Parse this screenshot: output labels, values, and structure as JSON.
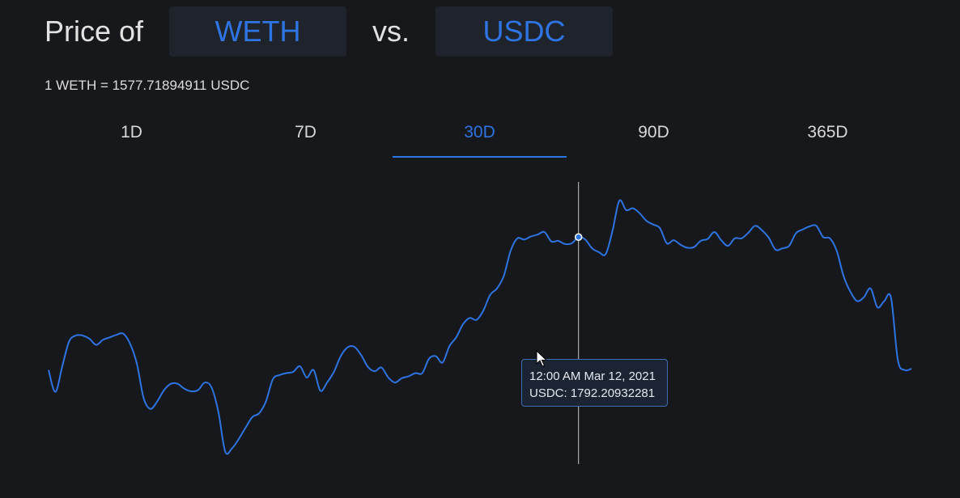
{
  "header": {
    "prefix": "Price of",
    "base_token": "WETH",
    "separator": "vs.",
    "quote_token": "USDC"
  },
  "rate_text": "1 WETH = 1577.71894911 USDC",
  "tabs": [
    {
      "label": "1D",
      "active": false
    },
    {
      "label": "7D",
      "active": false
    },
    {
      "label": "30D",
      "active": true
    },
    {
      "label": "90D",
      "active": false
    },
    {
      "label": "365D",
      "active": false
    }
  ],
  "tooltip": {
    "time": "12:00 AM Mar 12, 2021",
    "value": "USDC: 1792.20932281"
  },
  "colors": {
    "accent": "#2e74e2",
    "line": "#2e74e2",
    "background": "#17181c",
    "crosshair": "#c9c9c9"
  },
  "chart_data": {
    "type": "line",
    "title": "",
    "xlabel": "",
    "ylabel": "",
    "grid": false,
    "legend": "none",
    "ylim": [
      1430,
      1880
    ],
    "highlight_index": 78,
    "series": [
      {
        "name": "USDC",
        "values": [
          1580,
          1545,
          1585,
          1625,
          1635,
          1635,
          1630,
          1620,
          1628,
          1632,
          1636,
          1638,
          1622,
          1590,
          1535,
          1518,
          1530,
          1548,
          1558,
          1558,
          1550,
          1546,
          1548,
          1560,
          1552,
          1513,
          1450,
          1455,
          1470,
          1488,
          1505,
          1511,
          1530,
          1565,
          1572,
          1575,
          1577,
          1586,
          1568,
          1580,
          1547,
          1560,
          1577,
          1602,
          1616,
          1617,
          1604,
          1585,
          1578,
          1584,
          1568,
          1560,
          1567,
          1570,
          1575,
          1575,
          1598,
          1602,
          1592,
          1618,
          1632,
          1653,
          1663,
          1660,
          1675,
          1700,
          1710,
          1730,
          1770,
          1790,
          1788,
          1793,
          1796,
          1800,
          1785,
          1786,
          1781,
          1782,
          1792,
          1788,
          1774,
          1768,
          1765,
          1802,
          1850,
          1835,
          1838,
          1830,
          1818,
          1812,
          1806,
          1782,
          1787,
          1780,
          1775,
          1776,
          1786,
          1789,
          1800,
          1787,
          1778,
          1790,
          1790,
          1799,
          1810,
          1803,
          1791,
          1772,
          1774,
          1778,
          1798,
          1804,
          1809,
          1810,
          1792,
          1790,
          1770,
          1730,
          1705,
          1690,
          1696,
          1710,
          1680,
          1690,
          1695,
          1596,
          1580,
          1582
        ]
      }
    ]
  }
}
